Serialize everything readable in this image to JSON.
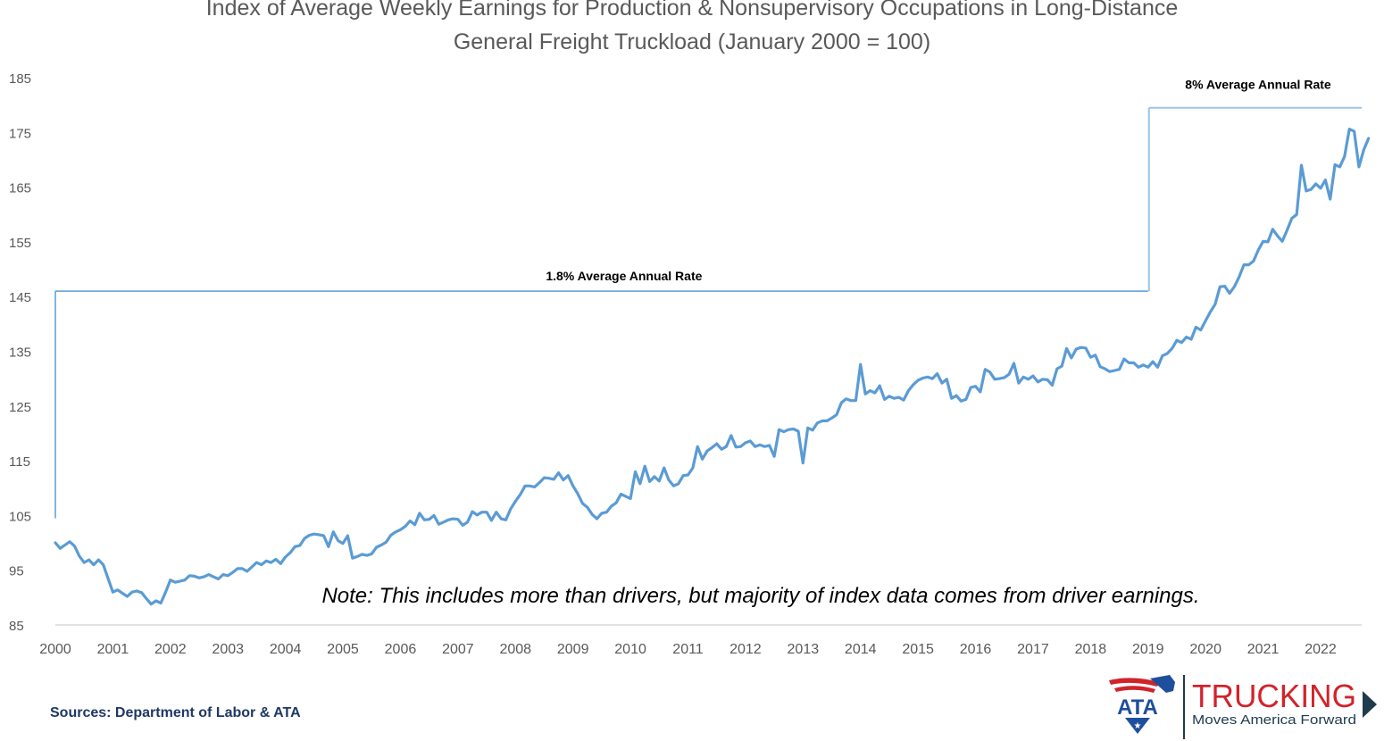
{
  "chart_data": {
    "type": "line",
    "title": "Index of Average Weekly Earnings for Production & Nonsupervisory Occupations in Long-Distance General Freight Truckload (January 2000 = 100)",
    "title_lines": [
      "Index of Average Weekly Earnings for Production & Nonsupervisory Occupations in Long-Distance",
      "General Freight Truckload (January 2000 = 100)"
    ],
    "xlabel": "",
    "ylabel": "",
    "ylim": [
      85,
      185
    ],
    "xlim": [
      2000,
      2022.75
    ],
    "yticks": [
      85,
      95,
      105,
      115,
      125,
      135,
      145,
      155,
      165,
      175,
      185
    ],
    "xticks": [
      "2000",
      "2001",
      "2002",
      "2003",
      "2004",
      "2005",
      "2006",
      "2007",
      "2008",
      "2009",
      "2010",
      "2011",
      "2012",
      "2013",
      "2014",
      "2015",
      "2016",
      "2017",
      "2018",
      "2019",
      "2020",
      "2021",
      "2022"
    ],
    "grid": false,
    "legend": "none",
    "line_color": "#5b9bd5",
    "series": [
      {
        "name": "Index (Jan 2000 = 100)",
        "frequency": "monthly, starting January 2000",
        "values": [
          100.0,
          99.0,
          99.6,
          100.2,
          99.4,
          97.6,
          96.4,
          96.9,
          96.0,
          96.9,
          96.0,
          93.5,
          91.0,
          91.4,
          90.8,
          90.2,
          91.0,
          91.2,
          90.9,
          89.8,
          88.8,
          89.4,
          89.0,
          91.0,
          93.2,
          92.8,
          93.0,
          93.2,
          94.0,
          93.9,
          93.6,
          93.8,
          94.2,
          93.8,
          93.4,
          94.2,
          94.0,
          94.6,
          95.3,
          95.3,
          94.8,
          95.6,
          96.4,
          96.0,
          96.7,
          96.4,
          97.0,
          96.2,
          97.4,
          98.2,
          99.3,
          99.5,
          100.8,
          101.4,
          101.6,
          101.5,
          101.3,
          99.3,
          102.0,
          100.4,
          99.9,
          101.3,
          97.2,
          97.5,
          97.9,
          97.7,
          98.0,
          99.2,
          99.6,
          100.1,
          101.4,
          102.0,
          102.4,
          103.0,
          104.0,
          103.3,
          105.4,
          104.2,
          104.3,
          105.0,
          103.4,
          103.8,
          104.2,
          104.4,
          104.3,
          103.2,
          103.8,
          105.7,
          105.1,
          105.6,
          105.6,
          104.1,
          105.6,
          104.4,
          104.2,
          106.2,
          107.6,
          108.8,
          110.4,
          110.4,
          110.2,
          111.0,
          111.9,
          111.8,
          111.6,
          112.8,
          111.5,
          112.3,
          110.4,
          109.0,
          107.2,
          106.5,
          105.2,
          104.4,
          105.4,
          105.6,
          106.7,
          107.3,
          108.9,
          108.5,
          108.1,
          113.0,
          110.8,
          114.0,
          111.2,
          112.1,
          111.3,
          113.7,
          111.5,
          110.4,
          110.8,
          112.3,
          112.4,
          113.7,
          117.6,
          115.3,
          116.8,
          117.4,
          118.1,
          117.1,
          117.6,
          119.6,
          117.5,
          117.6,
          118.3,
          118.6,
          117.6,
          117.9,
          117.6,
          117.8,
          115.8,
          120.7,
          120.3,
          120.7,
          120.8,
          120.4,
          114.6,
          121.0,
          120.6,
          121.9,
          122.3,
          122.3,
          122.8,
          123.4,
          125.6,
          126.3,
          126.0,
          126.0,
          132.6,
          127.2,
          127.8,
          127.4,
          128.7,
          126.2,
          126.8,
          126.4,
          126.6,
          126.1,
          127.8,
          128.9,
          129.7,
          130.1,
          130.3,
          130.0,
          130.9,
          129.2,
          129.9,
          126.4,
          126.9,
          125.9,
          126.2,
          128.4,
          128.6,
          127.6,
          131.7,
          131.2,
          129.9,
          130.0,
          130.2,
          130.8,
          132.8,
          129.2,
          130.3,
          129.9,
          130.5,
          129.4,
          129.9,
          129.8,
          128.8,
          131.8,
          132.3,
          135.5,
          133.8,
          135.4,
          135.7,
          135.6,
          133.9,
          134.3,
          132.2,
          131.8,
          131.3,
          131.5,
          131.7,
          133.6,
          132.9,
          132.9,
          132.1,
          132.5,
          132.1,
          133.1,
          132.1,
          134.2,
          134.6,
          135.5,
          137.0,
          136.6,
          137.6,
          137.2,
          139.4,
          138.9,
          140.6,
          142.2,
          143.6,
          146.8,
          146.9,
          145.6,
          146.8,
          148.6,
          150.8,
          150.8,
          151.5,
          153.5,
          155.1,
          155.0,
          157.3,
          156.1,
          155.1,
          157.1,
          159.3,
          160.0,
          169.0,
          164.3,
          164.6,
          165.6,
          164.8,
          166.3,
          162.8,
          169.1,
          168.7,
          170.6,
          175.6,
          175.2,
          168.7,
          171.8,
          173.9
        ]
      }
    ],
    "annotations": [
      {
        "text": "1.8% Average Annual Rate",
        "from": "2000",
        "to": "2019",
        "level": 146
      },
      {
        "text": "8% Average Annual Rate",
        "from": "2019",
        "to": "2022.75",
        "level": 179.5
      }
    ],
    "note": "Note: This includes more than drivers, but majority of index data comes from driver earnings."
  },
  "footer": {
    "sources": "Sources: Department of Labor & ATA"
  },
  "logo": {
    "ata_text": "ATA",
    "brand_text": "TRUCKING",
    "tagline": "Moves America Forward",
    "colors": {
      "red": "#d2232a",
      "blue": "#1f4e9c",
      "dark": "#1f3b4d"
    }
  }
}
